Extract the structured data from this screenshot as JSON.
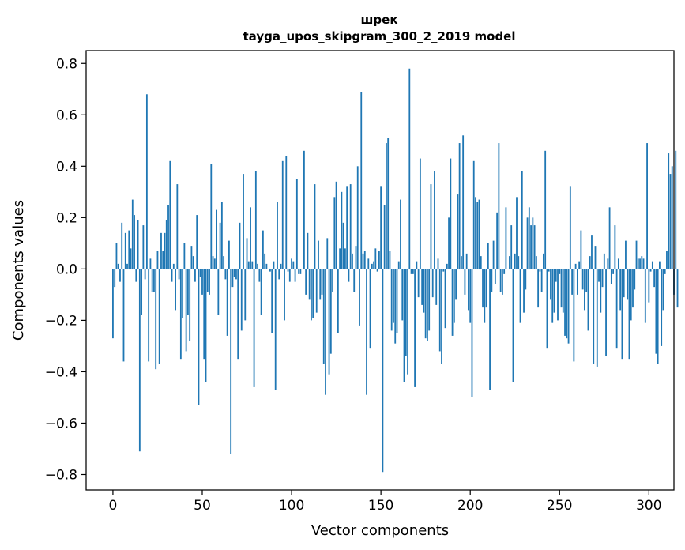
{
  "chart_data": {
    "type": "bar",
    "title": "шрек",
    "subtitle": "tayga_upos_skipgram_300_2_2019 model",
    "xlabel": "Vector components",
    "ylabel": "Components values",
    "xlim": [
      -15,
      314
    ],
    "ylim": [
      -0.86,
      0.85
    ],
    "xticks": [
      0,
      50,
      100,
      150,
      200,
      250,
      300
    ],
    "xtick_labels": [
      "0",
      "50",
      "100",
      "150",
      "200",
      "250",
      "300"
    ],
    "yticks": [
      0.8,
      0.6,
      0.4,
      0.2,
      0.0,
      -0.2,
      -0.4,
      -0.6,
      -0.8
    ],
    "ytick_labels": [
      "0.8",
      "0.6",
      "0.4",
      "0.2",
      "0.0",
      "−0.2",
      "−0.4",
      "−0.6",
      "−0.8"
    ],
    "bar_color": "#1f77b4",
    "grid": false,
    "series": [
      {
        "name": "шрек",
        "values": [
          -0.27,
          -0.07,
          0.1,
          0.02,
          -0.05,
          0.18,
          -0.36,
          0.14,
          0.02,
          0.15,
          0.08,
          0.27,
          0.21,
          -0.05,
          0.19,
          -0.71,
          -0.18,
          0.17,
          -0.04,
          0.68,
          -0.36,
          0.04,
          -0.09,
          -0.09,
          -0.39,
          0.07,
          -0.37,
          0.14,
          0.07,
          0.14,
          0.19,
          0.25,
          0.42,
          -0.05,
          0.02,
          -0.16,
          0.33,
          -0.04,
          -0.35,
          -0.19,
          0.1,
          -0.32,
          -0.18,
          -0.28,
          0.09,
          0.05,
          -0.05,
          0.21,
          -0.53,
          -0.03,
          -0.1,
          -0.35,
          -0.44,
          -0.09,
          -0.1,
          0.41,
          0.05,
          0.04,
          0.23,
          -0.18,
          0.18,
          0.26,
          0.05,
          -0.04,
          -0.26,
          0.11,
          -0.72,
          -0.07,
          -0.03,
          -0.04,
          -0.35,
          0.18,
          -0.24,
          0.37,
          -0.2,
          0.12,
          0.03,
          0.24,
          0.03,
          -0.46,
          0.38,
          0.02,
          -0.05,
          -0.18,
          0.15,
          0.06,
          0.02,
          0.0,
          -0.01,
          -0.25,
          0.03,
          -0.47,
          0.26,
          -0.04,
          0.02,
          0.42,
          -0.2,
          0.44,
          -0.01,
          -0.05,
          0.04,
          0.03,
          -0.05,
          0.35,
          -0.02,
          -0.02,
          0.0,
          0.46,
          -0.1,
          0.14,
          -0.12,
          -0.2,
          -0.19,
          0.33,
          -0.17,
          0.11,
          -0.12,
          -0.1,
          -0.37,
          -0.49,
          0.12,
          -0.41,
          -0.33,
          -0.09,
          0.28,
          0.34,
          -0.25,
          0.08,
          0.3,
          0.18,
          0.08,
          0.32,
          -0.05,
          0.33,
          0.06,
          -0.09,
          0.09,
          0.4,
          -0.22,
          0.69,
          0.06,
          0.07,
          -0.49,
          0.04,
          -0.31,
          0.02,
          0.03,
          0.08,
          -0.01,
          0.07,
          0.32,
          -0.79,
          0.25,
          0.49,
          0.51,
          0.07,
          -0.24,
          -0.21,
          -0.29,
          -0.25,
          0.03,
          0.27,
          -0.2,
          -0.44,
          -0.34,
          -0.41,
          0.78,
          -0.02,
          -0.02,
          -0.46,
          0.03,
          -0.11,
          0.43,
          -0.14,
          -0.17,
          -0.27,
          -0.28,
          -0.24,
          0.33,
          -0.11,
          0.38,
          -0.14,
          0.04,
          -0.32,
          -0.37,
          -0.01,
          -0.23,
          0.02,
          0.2,
          0.43,
          -0.26,
          -0.21,
          -0.12,
          0.29,
          0.49,
          0.05,
          0.52,
          -0.1,
          0.06,
          -0.16,
          -0.21,
          -0.5,
          0.42,
          0.28,
          0.26,
          0.27,
          0.05,
          -0.15,
          -0.21,
          -0.15,
          0.1,
          -0.47,
          -0.09,
          0.11,
          -0.06,
          0.22,
          0.49,
          -0.09,
          -0.1,
          -0.02,
          0.24,
          0.0,
          0.05,
          0.17,
          -0.44,
          0.06,
          0.28,
          0.05,
          -0.21,
          0.38,
          -0.17,
          -0.08,
          0.2,
          0.24,
          0.17,
          0.2,
          0.17,
          0.05,
          -0.15,
          -0.01,
          -0.09,
          0.06,
          0.46,
          -0.31,
          -0.01,
          -0.12,
          -0.21,
          -0.17,
          -0.05,
          -0.2,
          -0.02,
          -0.15,
          -0.17,
          -0.26,
          -0.27,
          -0.29,
          0.32,
          -0.1,
          -0.36,
          0.02,
          -0.1,
          0.03,
          0.15,
          -0.08,
          -0.16,
          -0.09,
          -0.24,
          0.05,
          0.13,
          -0.37,
          0.09,
          -0.38,
          -0.05,
          -0.17,
          -0.07,
          0.06,
          -0.34,
          0.04,
          0.24,
          -0.06,
          -0.02,
          0.17,
          -0.31,
          0.04,
          -0.16,
          -0.35,
          -0.11,
          0.11,
          -0.12,
          -0.35,
          -0.2,
          -0.15,
          -0.08,
          0.11,
          0.04,
          0.04,
          0.05,
          0.04,
          -0.21,
          0.49,
          -0.13,
          -0.01,
          0.03,
          -0.07,
          -0.33,
          -0.37,
          0.03,
          -0.3,
          -0.16,
          -0.02,
          0.07,
          0.45,
          0.37,
          0.4,
          -0.1,
          0.46,
          -0.15
        ]
      }
    ]
  }
}
